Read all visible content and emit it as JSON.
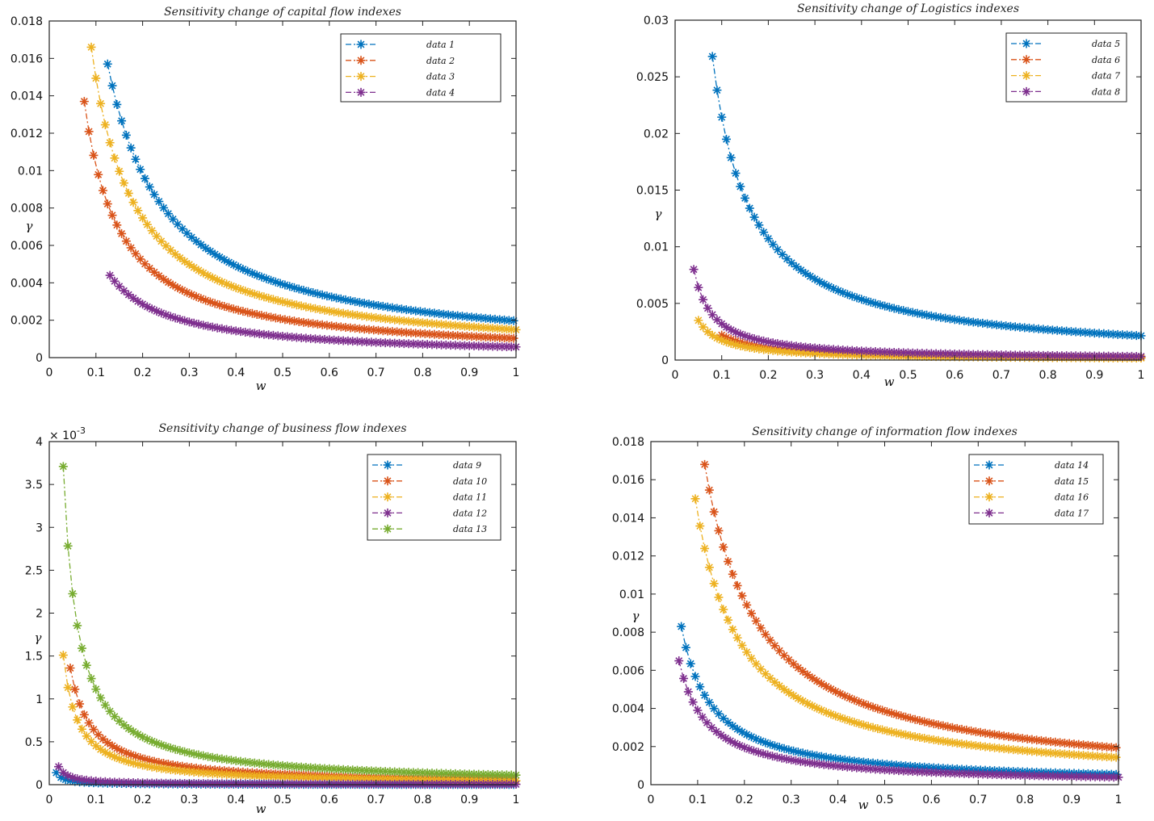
{
  "chart_data": [
    {
      "type": "line",
      "title": "Sensitivity change of capital flow indexes",
      "xlabel": "w",
      "ylabel": "γ",
      "xlim": [
        0,
        1
      ],
      "ylim": [
        0,
        0.018
      ],
      "xticks": [
        0,
        0.1,
        0.2,
        0.3,
        0.4,
        0.5,
        0.6,
        0.7,
        0.8,
        0.9,
        1
      ],
      "yticks": [
        0,
        0.002,
        0.004,
        0.006,
        0.008,
        0.01,
        0.012,
        0.014,
        0.016,
        0.018
      ],
      "xtick_labels": [
        "0",
        "0.1",
        "0.2",
        "0.3",
        "0.4",
        "0.5",
        "0.6",
        "0.7",
        "0.8",
        "0.9",
        "1"
      ],
      "ytick_labels": [
        "0",
        "0.002",
        "0.004",
        "0.006",
        "0.008",
        "0.01",
        "0.012",
        "0.014",
        "0.016",
        "0.018"
      ],
      "y_exponent": "",
      "grid": false,
      "legend_position": "top-right",
      "series": [
        {
          "name": "data 1",
          "color": "#0072BD",
          "marker": "asterisk",
          "line": "dash-dot",
          "x_start": 0.125,
          "x_step": 0.01,
          "x_end": 1,
          "y_start": 0.0157
        },
        {
          "name": "data 2",
          "color": "#D95319",
          "marker": "asterisk",
          "line": "dash-dot",
          "x_start": 0.075,
          "x_step": 0.01,
          "x_end": 1,
          "y_start": 0.0137
        },
        {
          "name": "data 3",
          "color": "#EDB120",
          "marker": "asterisk",
          "line": "dash-dot",
          "x_start": 0.09,
          "x_step": 0.01,
          "x_end": 1,
          "y_start": 0.0166
        },
        {
          "name": "data 4",
          "color": "#7E2F8E",
          "marker": "asterisk",
          "line": "dash-dot",
          "x_start": 0.13,
          "x_step": 0.01,
          "x_end": 1,
          "y_start": 0.0044
        }
      ]
    },
    {
      "type": "line",
      "title": "Sensitivity change of Logistics indexes",
      "xlabel": "w",
      "ylabel": "γ",
      "xlim": [
        0,
        1
      ],
      "ylim": [
        0,
        0.03
      ],
      "xticks": [
        0,
        0.1,
        0.2,
        0.3,
        0.4,
        0.5,
        0.6,
        0.7,
        0.8,
        0.9,
        1
      ],
      "yticks": [
        0,
        0.005,
        0.01,
        0.015,
        0.02,
        0.025,
        0.03
      ],
      "xtick_labels": [
        "0",
        "0.1",
        "0.2",
        "0.3",
        "0.4",
        "0.5",
        "0.6",
        "0.7",
        "0.8",
        "0.9",
        "1"
      ],
      "ytick_labels": [
        "0",
        "0.005",
        "0.01",
        "0.015",
        "0.02",
        "0.025",
        "0.03"
      ],
      "y_exponent": "",
      "grid": false,
      "legend_position": "top-right",
      "series": [
        {
          "name": "data 5",
          "color": "#0072BD",
          "marker": "asterisk",
          "line": "dash-dot",
          "x_start": 0.08,
          "x_step": 0.01,
          "x_end": 1,
          "y_start": 0.0268
        },
        {
          "name": "data 6",
          "color": "#D95319",
          "marker": "asterisk",
          "line": "dash-dot",
          "x_start": 0.1,
          "x_step": 0.01,
          "x_end": 1,
          "y_start": 0.0022
        },
        {
          "name": "data 7",
          "color": "#EDB120",
          "marker": "asterisk",
          "line": "dash-dot",
          "x_start": 0.05,
          "x_step": 0.01,
          "x_end": 1,
          "y_start": 0.0035
        },
        {
          "name": "data 8",
          "color": "#7E2F8E",
          "marker": "asterisk",
          "line": "dash-dot",
          "x_start": 0.04,
          "x_step": 0.01,
          "x_end": 1,
          "y_start": 0.008
        }
      ]
    },
    {
      "type": "line",
      "title": "Sensitivity change of business flow indexes",
      "xlabel": "w",
      "ylabel": "γ",
      "xlim": [
        0,
        1
      ],
      "ylim": [
        0,
        4
      ],
      "xticks": [
        0,
        0.1,
        0.2,
        0.3,
        0.4,
        0.5,
        0.6,
        0.7,
        0.8,
        0.9,
        1
      ],
      "yticks": [
        0,
        0.5,
        1,
        1.5,
        2,
        2.5,
        3,
        3.5,
        4
      ],
      "xtick_labels": [
        "0",
        "0.1",
        "0.2",
        "0.3",
        "0.4",
        "0.5",
        "0.6",
        "0.7",
        "0.8",
        "0.9",
        "1"
      ],
      "ytick_labels": [
        "0",
        "0.5",
        "1",
        "1.5",
        "2",
        "2.5",
        "3",
        "3.5",
        "4"
      ],
      "y_exponent": "× 10-3",
      "grid": false,
      "legend_position": "top-right",
      "series": [
        {
          "name": "data 9",
          "color": "#0072BD",
          "marker": "asterisk",
          "line": "dash-dot",
          "x_start": 0.015,
          "x_step": 0.01,
          "x_end": 1,
          "y_start": 0.14
        },
        {
          "name": "data 10",
          "color": "#D95319",
          "marker": "asterisk",
          "line": "dash-dot",
          "x_start": 0.045,
          "x_step": 0.01,
          "x_end": 1,
          "y_start": 1.36
        },
        {
          "name": "data 11",
          "color": "#EDB120",
          "marker": "asterisk",
          "line": "dash-dot",
          "x_start": 0.03,
          "x_step": 0.01,
          "x_end": 1,
          "y_start": 1.51
        },
        {
          "name": "data 12",
          "color": "#7E2F8E",
          "marker": "asterisk",
          "line": "dash-dot",
          "x_start": 0.02,
          "x_step": 0.01,
          "x_end": 1,
          "y_start": 0.21
        },
        {
          "name": "data 13",
          "color": "#77AC30",
          "marker": "asterisk",
          "line": "dash-dot",
          "x_start": 0.03,
          "x_step": 0.01,
          "x_end": 1,
          "y_start": 3.71
        }
      ]
    },
    {
      "type": "line",
      "title": "Sensitivity change of information flow indexes",
      "xlabel": "w",
      "ylabel": "γ",
      "xlim": [
        0,
        1
      ],
      "ylim": [
        0,
        0.018
      ],
      "xticks": [
        0,
        0.1,
        0.2,
        0.3,
        0.4,
        0.5,
        0.6,
        0.7,
        0.8,
        0.9,
        1
      ],
      "yticks": [
        0,
        0.002,
        0.004,
        0.006,
        0.008,
        0.01,
        0.012,
        0.014,
        0.016,
        0.018
      ],
      "xtick_labels": [
        "0",
        "0.1",
        "0.2",
        "0.3",
        "0.4",
        "0.5",
        "0.6",
        "0.7",
        "0.8",
        "0.9",
        "1"
      ],
      "ytick_labels": [
        "0",
        "0.002",
        "0.004",
        "0.006",
        "0.008",
        "0.01",
        "0.012",
        "0.014",
        "0.016",
        "0.018"
      ],
      "y_exponent": "",
      "grid": false,
      "legend_position": "top-right",
      "series": [
        {
          "name": "data 14",
          "color": "#0072BD",
          "marker": "asterisk",
          "line": "dash-dot",
          "x_start": 0.065,
          "x_step": 0.01,
          "x_end": 1,
          "y_start": 0.0083
        },
        {
          "name": "data 15",
          "color": "#D95319",
          "marker": "asterisk",
          "line": "dash-dot",
          "x_start": 0.115,
          "x_step": 0.01,
          "x_end": 1,
          "y_start": 0.0168
        },
        {
          "name": "data 16",
          "color": "#EDB120",
          "marker": "asterisk",
          "line": "dash-dot",
          "x_start": 0.095,
          "x_step": 0.01,
          "x_end": 1,
          "y_start": 0.015
        },
        {
          "name": "data 17",
          "color": "#7E2F8E",
          "marker": "asterisk",
          "line": "dash-dot",
          "x_start": 0.06,
          "x_step": 0.01,
          "x_end": 1,
          "y_start": 0.0065
        }
      ]
    }
  ]
}
